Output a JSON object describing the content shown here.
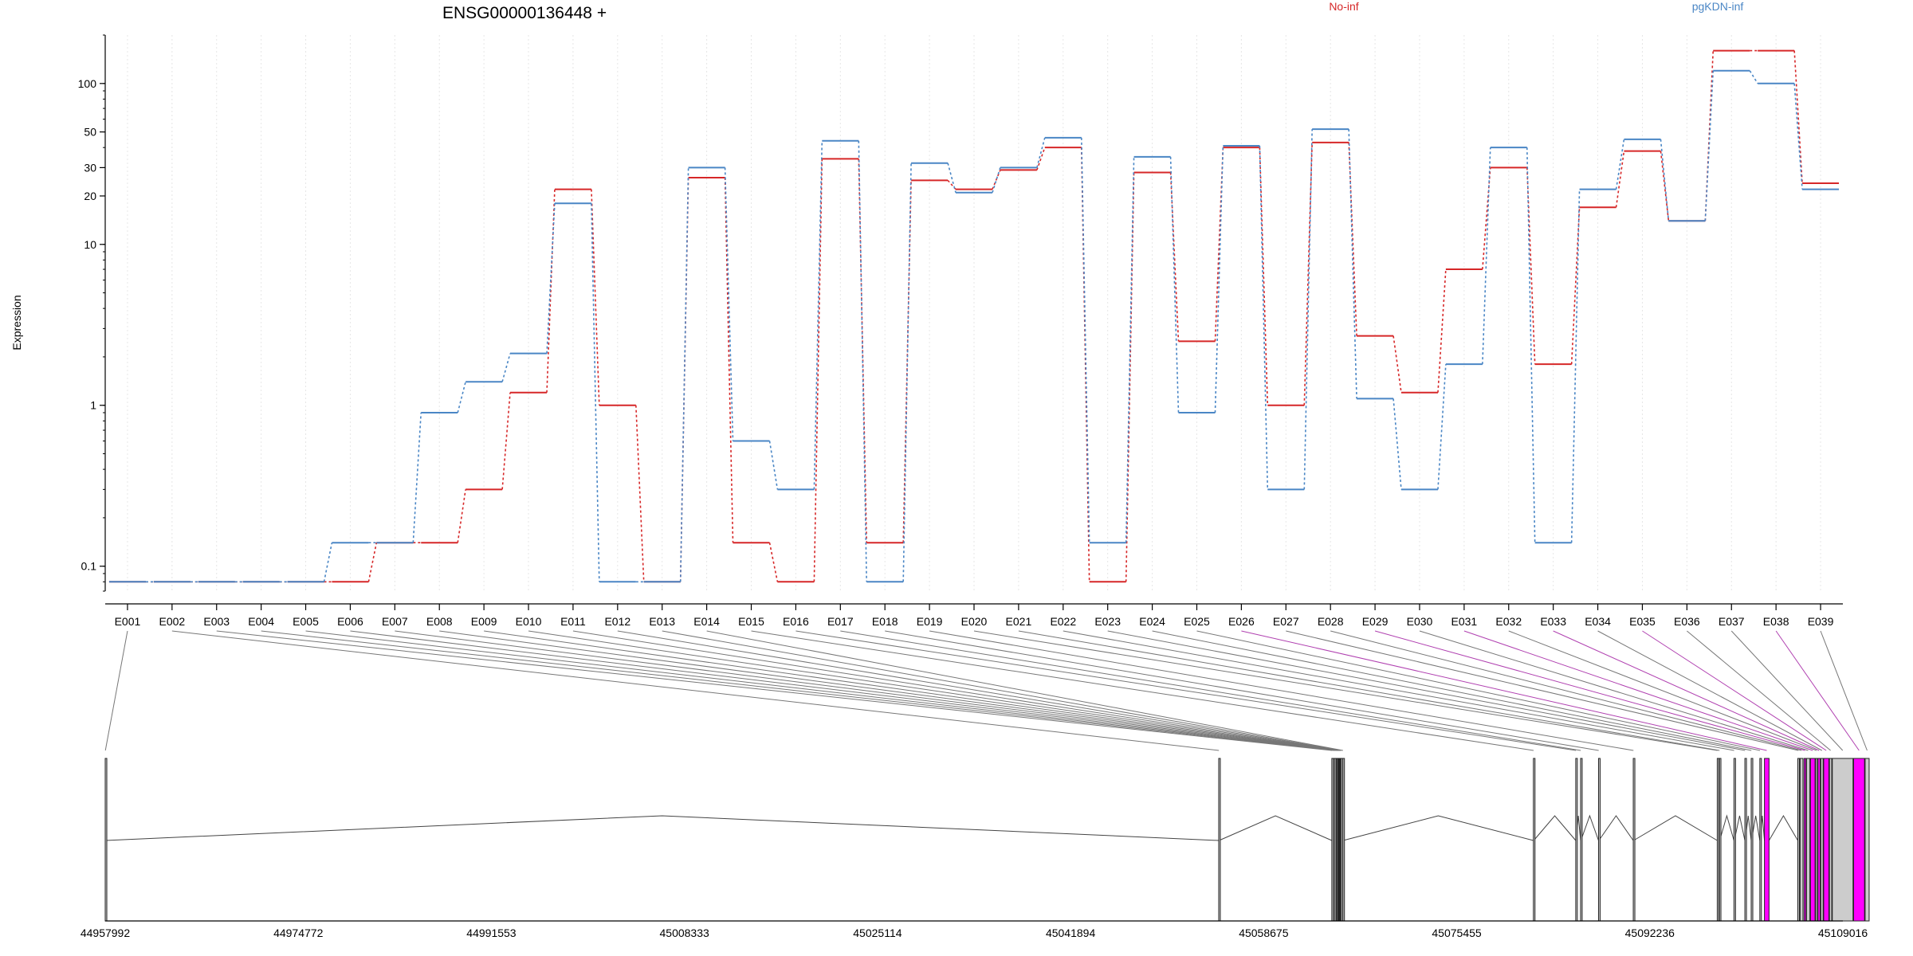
{
  "chart_data": {
    "type": "line",
    "title": "ENSG00000136448 +",
    "ylabel": "Expression",
    "xlabel": "",
    "y_scale": "log",
    "ylim": [
      0.07,
      200
    ],
    "y_ticks": [
      {
        "value": 0.1,
        "label": "0.1"
      },
      {
        "value": 1,
        "label": "1"
      },
      {
        "value": 10,
        "label": "10"
      },
      {
        "value": 20,
        "label": "20"
      },
      {
        "value": 30,
        "label": "30"
      },
      {
        "value": 50,
        "label": "50"
      },
      {
        "value": 100,
        "label": "100"
      }
    ],
    "categories": [
      "E001",
      "E002",
      "E003",
      "E004",
      "E005",
      "E006",
      "E007",
      "E008",
      "E009",
      "E010",
      "E011",
      "E012",
      "E013",
      "E014",
      "E015",
      "E016",
      "E017",
      "E018",
      "E019",
      "E020",
      "E021",
      "E022",
      "E023",
      "E024",
      "E025",
      "E026",
      "E027",
      "E028",
      "E029",
      "E030",
      "E031",
      "E032",
      "E033",
      "E034",
      "E035",
      "E036",
      "E037",
      "E038",
      "E039"
    ],
    "legend_position": "top",
    "grid": "vertical",
    "series": [
      {
        "name": "No-inf",
        "color": "#d62728",
        "values": [
          0.08,
          0.08,
          0.08,
          0.08,
          0.08,
          0.08,
          0.14,
          0.14,
          0.3,
          1.2,
          22,
          1,
          0.08,
          26,
          0.14,
          0.08,
          34,
          0.14,
          25,
          22,
          29,
          40,
          0.08,
          28,
          2.5,
          40,
          1,
          43,
          2.7,
          1.2,
          7,
          30,
          1.8,
          17,
          38,
          14,
          160,
          160,
          24
        ]
      },
      {
        "name": "pgKDN-inf",
        "color": "#4a86c5",
        "values": [
          0.08,
          0.08,
          0.08,
          0.08,
          0.08,
          0.14,
          0.14,
          0.9,
          1.4,
          2.1,
          18,
          0.08,
          0.08,
          30,
          0.6,
          0.3,
          44,
          0.08,
          32,
          21,
          30,
          46,
          0.14,
          35,
          0.9,
          41,
          0.3,
          52,
          1.1,
          0.3,
          1.8,
          40,
          0.14,
          22,
          45,
          14,
          120,
          100,
          22
        ]
      }
    ],
    "gene_model": {
      "coordinate_ticks": [
        "44957992",
        "44974772",
        "44991553",
        "45008333",
        "45025114",
        "45041894",
        "45058675",
        "45075455",
        "45092236",
        "45109016"
      ],
      "exons": [
        {
          "id": "E001",
          "start": 44957992,
          "end": 44958020,
          "color": "#cccccc"
        },
        {
          "id": "E002",
          "start": 45054770,
          "end": 45054800,
          "color": "#cccccc"
        },
        {
          "id": "E003",
          "start": 45064600,
          "end": 45064640,
          "color": "#cccccc"
        },
        {
          "id": "E004",
          "start": 45064760,
          "end": 45064790,
          "color": "#cccccc"
        },
        {
          "id": "E005",
          "start": 45064880,
          "end": 45064910,
          "color": "#cccccc"
        },
        {
          "id": "E006",
          "start": 45064990,
          "end": 45065010,
          "color": "#cccccc"
        },
        {
          "id": "E007",
          "start": 45065080,
          "end": 45065100,
          "color": "#cccccc"
        },
        {
          "id": "E008",
          "start": 45065140,
          "end": 45065160,
          "color": "#cccccc"
        },
        {
          "id": "E009",
          "start": 45065200,
          "end": 45065220,
          "color": "#cccccc"
        },
        {
          "id": "E010",
          "start": 45065240,
          "end": 45065260,
          "color": "#cccccc"
        },
        {
          "id": "E011",
          "start": 45065280,
          "end": 45065300,
          "color": "#cccccc"
        },
        {
          "id": "E012",
          "start": 45065340,
          "end": 45065360,
          "color": "#cccccc"
        },
        {
          "id": "E013",
          "start": 45065420,
          "end": 45065440,
          "color": "#cccccc"
        },
        {
          "id": "E014",
          "start": 45065560,
          "end": 45065580,
          "color": "#cccccc"
        },
        {
          "id": "E015",
          "start": 45082120,
          "end": 45082150,
          "color": "#cccccc"
        },
        {
          "id": "E016",
          "start": 45085800,
          "end": 45085830,
          "color": "#cccccc"
        },
        {
          "id": "E017",
          "start": 45086220,
          "end": 45086250,
          "color": "#cccccc"
        },
        {
          "id": "E018",
          "start": 45087780,
          "end": 45087810,
          "color": "#cccccc"
        },
        {
          "id": "E019",
          "start": 45090800,
          "end": 45090830,
          "color": "#cccccc"
        },
        {
          "id": "E020",
          "start": 45098100,
          "end": 45098130,
          "color": "#cccccc"
        },
        {
          "id": "E021",
          "start": 45098280,
          "end": 45098310,
          "color": "#cccccc"
        },
        {
          "id": "E022",
          "start": 45099550,
          "end": 45099580,
          "color": "#cccccc"
        },
        {
          "id": "E023",
          "start": 45100500,
          "end": 45100530,
          "color": "#cccccc"
        },
        {
          "id": "E024",
          "start": 45101050,
          "end": 45101080,
          "color": "#cccccc"
        },
        {
          "id": "E025",
          "start": 45101800,
          "end": 45101830,
          "color": "#cccccc"
        },
        {
          "id": "E026",
          "start": 45102200,
          "end": 45102600,
          "color": "#ff00ff"
        },
        {
          "id": "E027",
          "start": 45105100,
          "end": 45105200,
          "color": "#cccccc"
        },
        {
          "id": "E028",
          "start": 45105300,
          "end": 45105550,
          "color": "#cccccc"
        },
        {
          "id": "E029",
          "start": 45105650,
          "end": 45105800,
          "color": "#ff00ff"
        },
        {
          "id": "E030",
          "start": 45105850,
          "end": 45106150,
          "color": "#cccccc"
        },
        {
          "id": "E031",
          "start": 45106200,
          "end": 45106600,
          "color": "#ff00ff"
        },
        {
          "id": "E032",
          "start": 45106650,
          "end": 45106800,
          "color": "#cccccc"
        },
        {
          "id": "E033",
          "start": 45106850,
          "end": 45107050,
          "color": "#ff00ff"
        },
        {
          "id": "E034",
          "start": 45107100,
          "end": 45107300,
          "color": "#cccccc"
        },
        {
          "id": "E035",
          "start": 45107350,
          "end": 45107800,
          "color": "#ff00ff"
        },
        {
          "id": "E036",
          "start": 45107850,
          "end": 45108050,
          "color": "#cccccc"
        },
        {
          "id": "E037",
          "start": 45108100,
          "end": 45109900,
          "color": "#cccccc"
        },
        {
          "id": "E038",
          "start": 45109950,
          "end": 45110900,
          "color": "#ff00ff"
        },
        {
          "id": "E039",
          "start": 45110950,
          "end": 45111300,
          "color": "#cccccc"
        }
      ]
    }
  }
}
